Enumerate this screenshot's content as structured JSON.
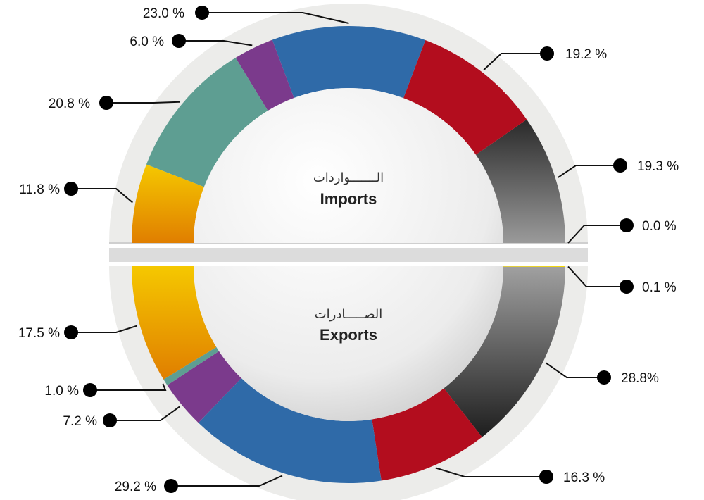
{
  "chart_data": [
    {
      "type": "donut",
      "name": "imports",
      "center_label_ar": "الـــــــواردات",
      "center_label_en": "Imports",
      "segments": [
        {
          "value": 0.0,
          "label": "0.0 %",
          "color": "#f5d800"
        },
        {
          "value": 19.3,
          "label": "19.3 %",
          "color": "#4a4a4a"
        },
        {
          "value": 19.2,
          "label": "19.2 %",
          "color": "#b30d1e"
        },
        {
          "value": 23.0,
          "label": "23.0 %",
          "color": "#2f6aa8"
        },
        {
          "value": 6.0,
          "label": "6.0 %",
          "color": "#7b3a8c"
        },
        {
          "value": 20.8,
          "label": "20.8 %",
          "color": "#5e9e92"
        },
        {
          "value": 11.8,
          "label": "11.8 %",
          "color": "#e89000"
        }
      ]
    },
    {
      "type": "donut",
      "name": "exports",
      "center_label_ar": "الصـــــادرات",
      "center_label_en": "Exports",
      "segments": [
        {
          "value": 0.1,
          "label": "0.1 %",
          "color": "#f5d800"
        },
        {
          "value": 28.8,
          "label": "28.8%",
          "color": "#4a4a4a"
        },
        {
          "value": 16.3,
          "label": "16.3 %",
          "color": "#b30d1e"
        },
        {
          "value": 29.2,
          "label": "29.2 %",
          "color": "#2f6aa8"
        },
        {
          "value": 7.2,
          "label": "7.2 %",
          "color": "#7b3a8c"
        },
        {
          "value": 1.0,
          "label": "1.0 %",
          "color": "#5e9e92"
        },
        {
          "value": 17.5,
          "label": "17.5 %",
          "color": "#e89000"
        }
      ]
    }
  ]
}
